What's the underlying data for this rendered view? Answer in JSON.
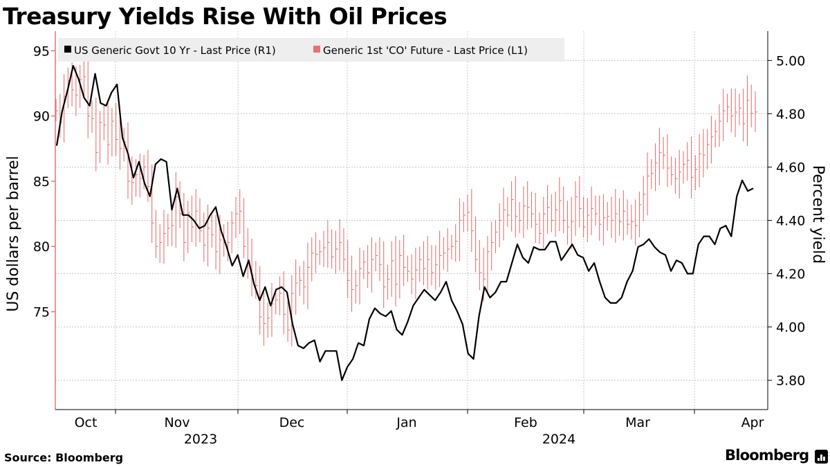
{
  "header": {
    "title": "Treasury Yields Rise With Oil Prices"
  },
  "footer": {
    "source": "Source: Bloomberg",
    "brand": "Bloomberg",
    "brand_icon": "bloomberg-bars-icon"
  },
  "colors": {
    "yield_line": "#000000",
    "oil_bars": "#e87272",
    "grid": "#c8c8c8",
    "legend_bg": "#eeeeee"
  },
  "chart_data": {
    "type": "line",
    "title": "Treasury Yields Rise With Oil Prices",
    "legend": [
      {
        "label": "US Generic Govt 10 Yr - Last Price (R1)",
        "color": "#000000"
      },
      {
        "label": "Generic 1st 'CO' Future - Last Price (L1)",
        "color": "#e87272"
      }
    ],
    "legend_position": "top-left",
    "ylabel_left": "US dollars per barrel",
    "ylabel_right": "Percent yield",
    "ylim_left": [
      67.5,
      96.5
    ],
    "ylim_right": [
      3.69,
      5.11
    ],
    "yticks_left": [
      "75",
      "80",
      "85",
      "90",
      "95"
    ],
    "yticks_right": [
      "3.80",
      "4.00",
      "4.20",
      "4.40",
      "4.60",
      "4.80",
      "5.00"
    ],
    "month_labels": [
      "Oct",
      "Nov",
      "Dec",
      "Jan",
      "Feb",
      "Mar",
      "Apr"
    ],
    "year_labels": [
      "2023",
      "2024"
    ],
    "grid": true,
    "series": [
      {
        "name": "US Generic Govt 10 Yr - Last Price (R1)",
        "axis": "right",
        "type": "line",
        "values": [
          4.68,
          4.81,
          4.89,
          4.98,
          4.93,
          4.86,
          4.83,
          4.95,
          4.84,
          4.83,
          4.88,
          4.91,
          4.71,
          4.65,
          4.56,
          4.62,
          4.54,
          4.49,
          4.61,
          4.63,
          4.62,
          4.44,
          4.52,
          4.42,
          4.42,
          4.4,
          4.37,
          4.38,
          4.42,
          4.45,
          4.36,
          4.3,
          4.23,
          4.27,
          4.19,
          4.25,
          4.16,
          4.1,
          4.15,
          4.08,
          4.14,
          4.15,
          4.13,
          4.01,
          3.93,
          3.92,
          3.94,
          3.95,
          3.87,
          3.91,
          3.91,
          3.91,
          3.8,
          3.85,
          3.88,
          3.94,
          3.93,
          4.03,
          4.07,
          4.05,
          4.04,
          4.06,
          3.99,
          3.97,
          4.02,
          4.08,
          4.11,
          4.14,
          4.12,
          4.1,
          4.13,
          4.17,
          4.1,
          4.06,
          4.01,
          3.9,
          3.88,
          4.04,
          4.15,
          4.11,
          4.13,
          4.17,
          4.17,
          4.24,
          4.31,
          4.26,
          4.24,
          4.3,
          4.29,
          4.29,
          4.32,
          4.32,
          4.25,
          4.28,
          4.31,
          4.27,
          4.26,
          4.21,
          4.24,
          4.17,
          4.11,
          4.09,
          4.09,
          4.11,
          4.17,
          4.21,
          4.3,
          4.31,
          4.33,
          4.3,
          4.28,
          4.27,
          4.21,
          4.25,
          4.24,
          4.2,
          4.2,
          4.31,
          4.34,
          4.34,
          4.31,
          4.37,
          4.38,
          4.34,
          4.49,
          4.55,
          4.51,
          4.52
        ]
      },
      {
        "name": "Generic 1st 'CO' Future - Last Price (L1)",
        "axis": "left",
        "type": "hlc-bar",
        "values": [
          90.4,
          89.5,
          91.5,
          92.7,
          92.0,
          91.6,
          92.8,
          93.0,
          90.0,
          89.8,
          87.2,
          89.5,
          89.3,
          87.8,
          89.6,
          88.2,
          87.5,
          88.0,
          85.0,
          84.9,
          85.5,
          85.2,
          86.1,
          84.6,
          81.8,
          80.0,
          80.3,
          81.0,
          81.4,
          81.6,
          83.8,
          82.5,
          80.3,
          82.6,
          81.5,
          82.7,
          81.2,
          80.1,
          81.4,
          80.9,
          79.6,
          80.5,
          80.3,
          80.3,
          81.8,
          82.5,
          82.7,
          80.0,
          78.8,
          77.8,
          77.0,
          74.6,
          74.1,
          74.5,
          75.6,
          75.9,
          76.4,
          74.8,
          73.6,
          76.4,
          77.2,
          77.4,
          76.9,
          78.4,
          79.5,
          79.4,
          79.6,
          79.9,
          80.3,
          79.2,
          79.8,
          80.3,
          79.0,
          77.4,
          76.7,
          77.0,
          78.3,
          78.8,
          78.0,
          79.0,
          79.3,
          78.6,
          76.9,
          77.5,
          78.9,
          77.1,
          79.3,
          78.4,
          78.1,
          77.5,
          78.2,
          79.0,
          78.3,
          79.0,
          78.0,
          78.6,
          79.3,
          79.5,
          79.8,
          80.0,
          80.4,
          82.0,
          82.4,
          82.6,
          81.2,
          79.0,
          78.0,
          77.5,
          79.6,
          80.3,
          81.1,
          82.0,
          82.8,
          82.4,
          83.6,
          82.3,
          82.0,
          83.1,
          83.0,
          82.5,
          81.7,
          81.0,
          82.5,
          83.0,
          82.0,
          82.8,
          83.5,
          82.0,
          81.5,
          81.9,
          83.8,
          82.9,
          81.5,
          82.4,
          82.9,
          82.5,
          81.7,
          82.2,
          82.3,
          82.0,
          82.5,
          81.9,
          82.7,
          81.7,
          81.9,
          81.6,
          83.2,
          84.0,
          85.4,
          85.6,
          86.4,
          87.2,
          87.0,
          86.0,
          85.5,
          85.2,
          85.7,
          86.3,
          86.6,
          85.3,
          85.9,
          87.1,
          87.0,
          87.8,
          88.4,
          88.8,
          89.6,
          90.4,
          90.7,
          90.0,
          90.3,
          90.6,
          89.4,
          91.2,
          90.2,
          90.3
        ]
      }
    ]
  }
}
